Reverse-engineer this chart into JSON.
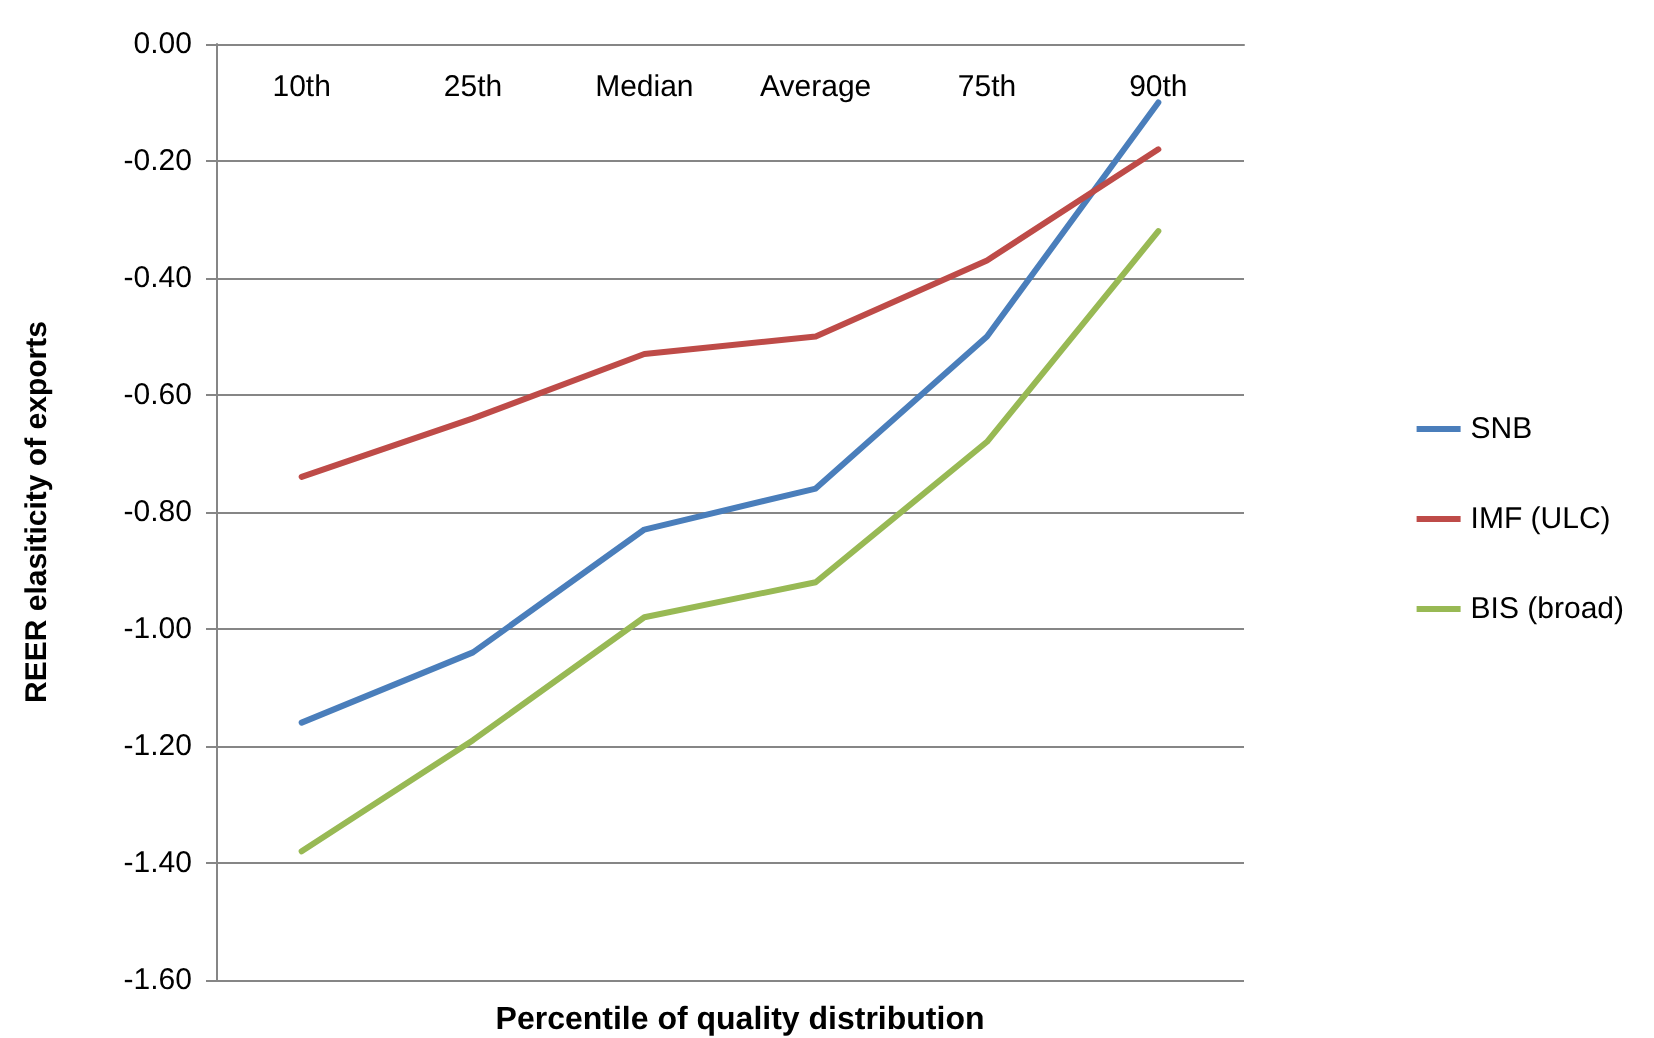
{
  "chart_data": {
    "type": "line",
    "xlabel": "Percentile of quality distribution",
    "ylabel": "REER elasiticity of exports",
    "categories": [
      "10th",
      "25th",
      "Median",
      "Average",
      "75th",
      "90th"
    ],
    "series": [
      {
        "name": "SNB",
        "color": "#4a7ebb",
        "values": [
          -1.16,
          -1.04,
          -0.83,
          -0.76,
          -0.5,
          -0.1
        ]
      },
      {
        "name": "IMF (ULC)",
        "color": "#be4b48",
        "values": [
          -0.74,
          -0.64,
          -0.53,
          -0.5,
          -0.37,
          -0.18
        ]
      },
      {
        "name": "BIS (broad)",
        "color": "#98b954",
        "values": [
          -1.38,
          -1.19,
          -0.98,
          -0.92,
          -0.68,
          -0.32
        ]
      }
    ],
    "ylim": [
      -1.6,
      0
    ],
    "yticks": [
      {
        "value": -1.6,
        "label": "-1.60"
      },
      {
        "value": -1.4,
        "label": "-1.40"
      },
      {
        "value": -1.2,
        "label": "-1.20"
      },
      {
        "value": -1.0,
        "label": "-1.00"
      },
      {
        "value": -0.8,
        "label": "-0.80"
      },
      {
        "value": -0.6,
        "label": "-0.60"
      },
      {
        "value": -0.4,
        "label": "-0.40"
      },
      {
        "value": -0.2,
        "label": "-0.20"
      },
      {
        "value": 0,
        "label": "0.00"
      }
    ],
    "grid": "y",
    "legend": "right",
    "marker": "none",
    "line_style": "solid"
  }
}
